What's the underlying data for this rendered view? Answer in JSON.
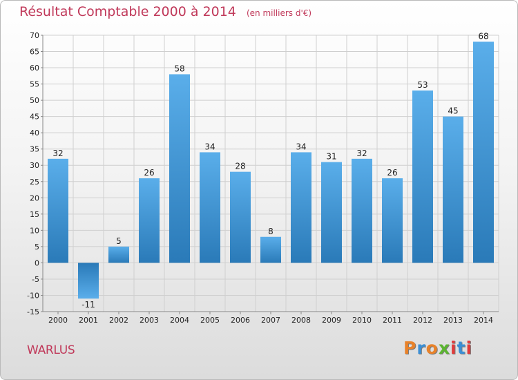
{
  "header": {
    "title": "Résultat Comptable 2000 à 2014",
    "subtitle": "(en milliers d'€)"
  },
  "footer": {
    "commune": "WARLUS",
    "logo_text": "Proxiti"
  },
  "colors": {
    "title": "#c0395a",
    "bar_light": "#5aaeea",
    "bar_dark": "#2a7ab8",
    "grid": "#cfcfcf",
    "logo": [
      "#e8822a",
      "#3a8fd6",
      "#e8822a",
      "#5cb531",
      "#e23b3b",
      "#3a8fd6",
      "#e23b3b"
    ]
  },
  "chart_data": {
    "type": "bar",
    "title": "Résultat Comptable 2000 à 2014",
    "subtitle": "(en milliers d'€)",
    "xlabel": "",
    "ylabel": "",
    "categories": [
      "2000",
      "2001",
      "2002",
      "2003",
      "2004",
      "2005",
      "2006",
      "2007",
      "2008",
      "2009",
      "2010",
      "2011",
      "2012",
      "2013",
      "2014"
    ],
    "values": [
      32,
      -11,
      5,
      26,
      58,
      34,
      28,
      8,
      34,
      31,
      32,
      26,
      53,
      45,
      68
    ],
    "ylim": [
      -15,
      70
    ],
    "yticks": [
      70,
      65,
      60,
      55,
      50,
      45,
      40,
      35,
      30,
      25,
      20,
      15,
      10,
      5,
      0,
      -5,
      -10,
      -15
    ],
    "grid": true,
    "legend": "none"
  }
}
